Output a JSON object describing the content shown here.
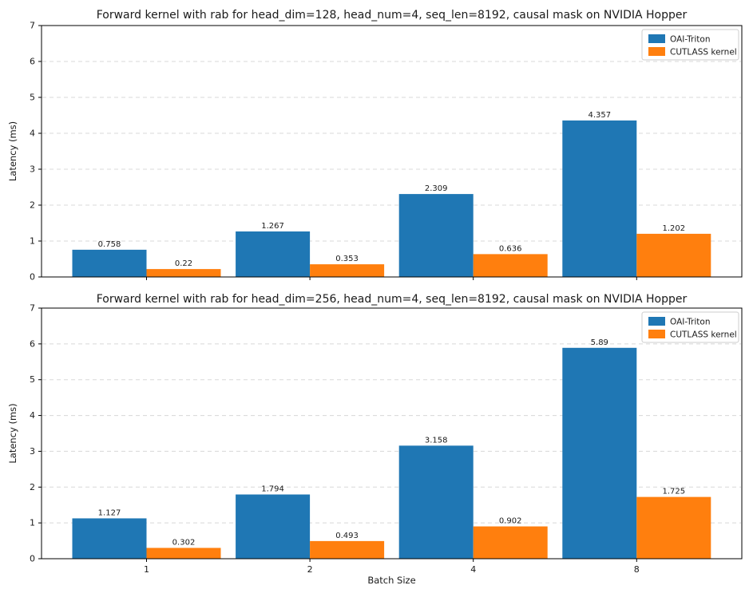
{
  "figure": {
    "xlabel": "Batch Size",
    "ylabel": "Latency (ms)"
  },
  "legend": {
    "position": "upper right",
    "items": [
      {
        "label": "OAI-Triton",
        "color": "#1f77b4"
      },
      {
        "label": "CUTLASS kernel",
        "color": "#ff7f0e"
      }
    ]
  },
  "colors": {
    "oai_triton": "#1f77b4",
    "cutlass_kernel": "#ff7f0e",
    "grid": "#d8d8d8",
    "spine": "#000000",
    "text": "#1a1a1a"
  },
  "chart_data": [
    {
      "type": "bar",
      "title": "Forward kernel with rab for head_dim=128, head_num=4, seq_len=8192, causal mask on NVIDIA Hopper",
      "categories": [
        "1",
        "2",
        "4",
        "8"
      ],
      "series": [
        {
          "name": "OAI-Triton",
          "color": "#1f77b4",
          "values": [
            0.758,
            1.267,
            2.309,
            4.357
          ],
          "labels": [
            "0.758",
            "1.267",
            "2.309",
            "4.357"
          ]
        },
        {
          "name": "CUTLASS kernel",
          "color": "#ff7f0e",
          "values": [
            0.22,
            0.353,
            0.636,
            1.202
          ],
          "labels": [
            "0.22",
            "0.353",
            "0.636",
            "1.202"
          ]
        }
      ],
      "xlabel": "",
      "ylabel": "Latency (ms)",
      "ylim": [
        0,
        7
      ],
      "yticks": [
        0,
        1,
        2,
        3,
        4,
        5,
        6,
        7
      ],
      "grid": true,
      "grid_style": "dashed",
      "legend_position": "upper right",
      "show_xticklabels": false
    },
    {
      "type": "bar",
      "title": "Forward kernel with rab for head_dim=256, head_num=4, seq_len=8192, causal mask on NVIDIA Hopper",
      "categories": [
        "1",
        "2",
        "4",
        "8"
      ],
      "series": [
        {
          "name": "OAI-Triton",
          "color": "#1f77b4",
          "values": [
            1.127,
            1.794,
            3.158,
            5.89
          ],
          "labels": [
            "1.127",
            "1.794",
            "3.158",
            "5.89"
          ]
        },
        {
          "name": "CUTLASS kernel",
          "color": "#ff7f0e",
          "values": [
            0.302,
            0.493,
            0.902,
            1.725
          ],
          "labels": [
            "0.302",
            "0.493",
            "0.902",
            "1.725"
          ]
        }
      ],
      "xlabel": "Batch Size",
      "ylabel": "Latency (ms)",
      "ylim": [
        0,
        7
      ],
      "yticks": [
        0,
        1,
        2,
        3,
        4,
        5,
        6,
        7
      ],
      "grid": true,
      "grid_style": "dashed",
      "legend_position": "upper right",
      "show_xticklabels": true
    }
  ]
}
